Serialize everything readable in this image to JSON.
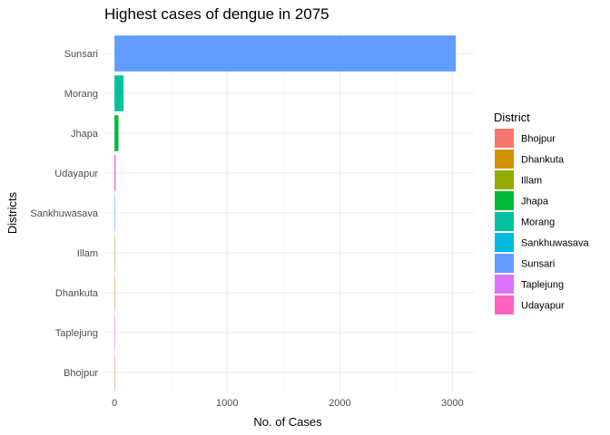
{
  "chart_data": {
    "type": "bar",
    "orientation": "horizontal",
    "title": "Highest cases of dengue in 2075",
    "xlabel": "No. of Cases",
    "ylabel": "Districts",
    "xlim": [
      -90,
      3190
    ],
    "xticks": [
      0,
      1000,
      2000,
      3000
    ],
    "grid": true,
    "legend_position": "right",
    "legend_title": "District",
    "categories": [
      "Sunsari",
      "Morang",
      "Jhapa",
      "Udayapur",
      "Sankhuwasava",
      "Illam",
      "Dhankuta",
      "Taplejung",
      "Bhojpur"
    ],
    "values": [
      3030,
      80,
      35,
      10,
      2,
      1,
      1,
      1,
      1
    ],
    "legend": [
      {
        "label": "Bhojpur",
        "color": "#F8766D"
      },
      {
        "label": "Dhankuta",
        "color": "#D39200"
      },
      {
        "label": "Illam",
        "color": "#93AA00"
      },
      {
        "label": "Jhapa",
        "color": "#00BA38"
      },
      {
        "label": "Morang",
        "color": "#00C19F"
      },
      {
        "label": "Sankhuwasava",
        "color": "#00B9E3"
      },
      {
        "label": "Sunsari",
        "color": "#619CFF"
      },
      {
        "label": "Taplejung",
        "color": "#DB72FB"
      },
      {
        "label": "Udayapur",
        "color": "#FF61C3"
      }
    ]
  }
}
